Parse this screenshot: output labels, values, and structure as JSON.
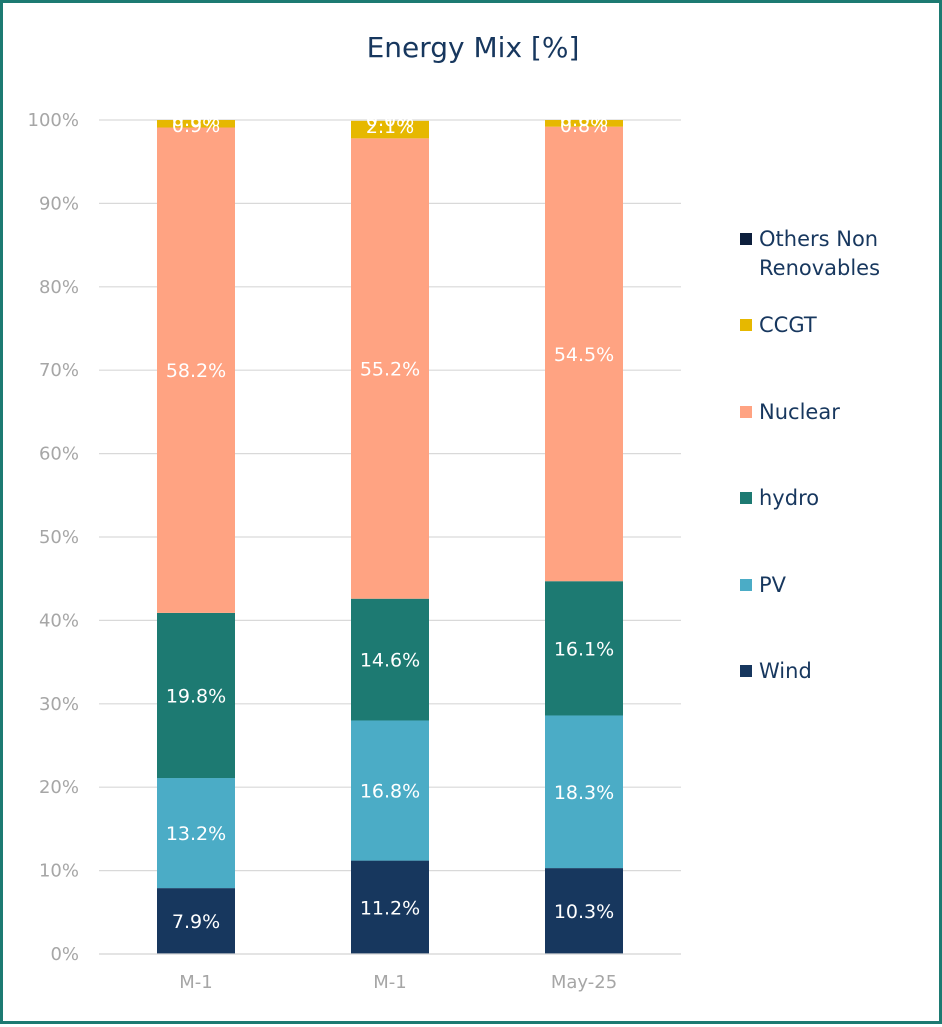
{
  "chart_data": {
    "type": "bar",
    "stacked": true,
    "title": "Energy Mix [%]",
    "xlabel": "",
    "ylabel": "",
    "ylim": [
      0,
      100
    ],
    "yticks": [
      "0%",
      "10%",
      "20%",
      "30%",
      "40%",
      "50%",
      "60%",
      "70%",
      "80%",
      "90%",
      "100%"
    ],
    "categories": [
      "M-1",
      "M-1",
      "May-25"
    ],
    "series": [
      {
        "name": "Wind",
        "color": "#17375e",
        "values": [
          7.9,
          11.2,
          10.3
        ],
        "labels": [
          "7.9%",
          "11.2%",
          "10.3%"
        ]
      },
      {
        "name": "PV",
        "color": "#4bacc6",
        "values": [
          13.2,
          16.8,
          18.3
        ],
        "labels": [
          "13.2%",
          "16.8%",
          "18.3%"
        ]
      },
      {
        "name": "hydro",
        "color": "#1d7a72",
        "values": [
          19.8,
          14.6,
          16.1
        ],
        "labels": [
          "19.8%",
          "14.6%",
          "16.1%"
        ]
      },
      {
        "name": "Nuclear",
        "color": "#ffa382",
        "values": [
          58.2,
          55.2,
          54.5
        ],
        "labels": [
          "58.2%",
          "55.2%",
          "54.5%"
        ]
      },
      {
        "name": "CCGT",
        "color": "#e6b800",
        "values": [
          0.9,
          2.1,
          0.8
        ],
        "labels": [
          "0.9%",
          "2.1%",
          "0.8%"
        ]
      },
      {
        "name": "Others Non Renovables",
        "color": "#0d1f3c",
        "values": [
          0.0,
          0.0,
          0.0
        ],
        "labels": [
          "0.0%",
          "0.0%",
          "0.0%"
        ]
      }
    ],
    "legend": {
      "position": "right",
      "order": [
        "Others Non Renovables",
        "CCGT",
        "Nuclear",
        "hydro",
        "PV",
        "Wind"
      ],
      "lines": {
        "Others Non Renovables": [
          "Others Non",
          "Renovables"
        ]
      }
    },
    "grid": true
  }
}
